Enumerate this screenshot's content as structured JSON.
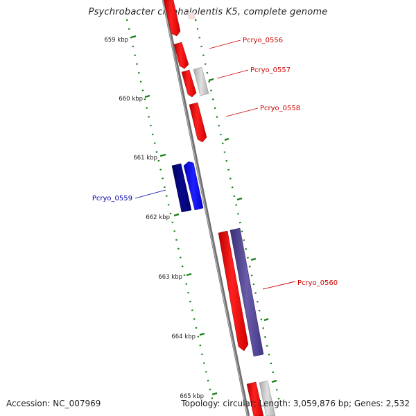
{
  "genome_title": "Psychrobacter cryohalolentis K5, complete genome",
  "footer": {
    "accession": "Accession: NC_007969",
    "stats": "Topology: circular; Length: 3,059,876 bp; Genes: 2,532"
  },
  "ticks": [
    {
      "label": "659 kbp"
    },
    {
      "label": "660 kbp"
    },
    {
      "label": "661 kbp"
    },
    {
      "label": "662 kbp"
    },
    {
      "label": "663 kbp"
    },
    {
      "label": "664 kbp"
    },
    {
      "label": "665 kbp"
    }
  ],
  "gene_labels": [
    {
      "name": "Pcryo_0556",
      "color": "#cc0000"
    },
    {
      "name": "Pcryo_0557",
      "color": "#cc0000"
    },
    {
      "name": "Pcryo_0558",
      "color": "#cc0000"
    },
    {
      "name": "Pcryo_0559",
      "color": "#0000aa"
    },
    {
      "name": "Pcryo_0560",
      "color": "#cc0000"
    }
  ],
  "colors": {
    "forward_gene": "#ff0000",
    "reverse_gene": "#0000ff",
    "reverse_gene_dark": "#000080",
    "rna_gene": "#4b3d8f",
    "other_feature": "#bdbdbd",
    "backbone": "#808080",
    "tick": "#1a7f1a"
  }
}
